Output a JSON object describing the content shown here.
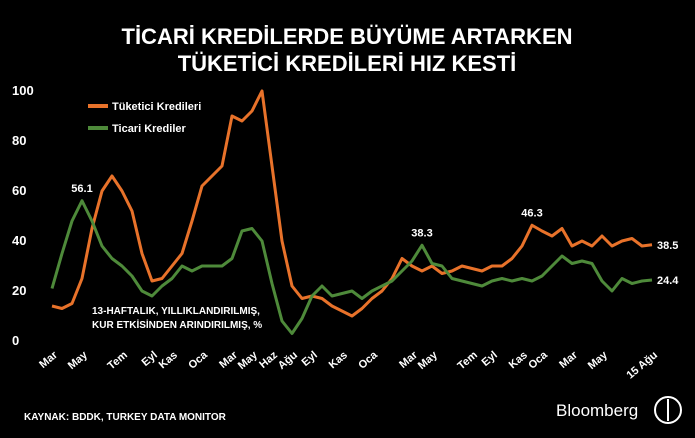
{
  "chart_data": {
    "type": "line",
    "title_lines": [
      "TİCARİ KREDİLERDE BÜYÜME ARTARKEN",
      "TÜKETİCİ KREDİLERİ HIZ KESTİ"
    ],
    "note_lines": [
      "13-HAFTALIK, YILLIKLANDIRILMIŞ,",
      "KUR ETKİSİNDEN ARINDIRILMIŞ, %"
    ],
    "source": "KAYNAK: BDDK, TURKEY DATA MONITOR",
    "brand": "Bloomberg",
    "categories": [
      "Mar",
      null,
      null,
      "May",
      null,
      null,
      null,
      "Tem",
      null,
      null,
      "Eyl",
      null,
      "Kas",
      null,
      null,
      "Oca",
      null,
      null,
      "Mar",
      null,
      "May",
      null,
      "Haz",
      null,
      "Ağu",
      null,
      "Eyl",
      null,
      null,
      "Kas",
      null,
      null,
      "Oca",
      null,
      null,
      null,
      "Mar",
      null,
      "May",
      null,
      null,
      null,
      "Tem",
      null,
      "Eyl",
      null,
      null,
      "Kas",
      null,
      "Oca",
      null,
      null,
      "Mar",
      null,
      null,
      "May",
      null,
      null,
      null,
      null,
      "15 Ağu"
    ],
    "series": [
      {
        "name": "Tüketici Kredileri",
        "color": "#e8722a",
        "values": [
          14,
          13,
          15,
          25,
          45,
          60,
          66,
          60,
          52,
          35,
          24,
          25,
          30,
          35,
          48,
          62,
          66,
          70,
          90,
          88,
          92,
          100,
          70,
          40,
          22,
          17,
          18,
          17,
          14,
          12,
          10,
          13,
          17,
          20,
          25,
          33,
          30,
          28,
          30,
          27,
          28,
          30,
          29,
          28,
          30,
          30,
          33,
          38,
          46.3,
          44,
          42,
          45,
          38,
          40,
          38,
          42,
          38,
          40,
          41,
          38,
          38.5
        ],
        "value_labels": [
          null,
          null,
          null,
          null,
          null,
          null,
          null,
          null,
          null,
          null,
          null,
          null,
          null,
          null,
          null,
          null,
          null,
          null,
          null,
          null,
          null,
          null,
          null,
          null,
          null,
          null,
          null,
          null,
          null,
          null,
          null,
          null,
          null,
          null,
          null,
          null,
          null,
          null,
          null,
          null,
          null,
          null,
          null,
          null,
          null,
          null,
          null,
          null,
          "46.3",
          null,
          null,
          null,
          null,
          null,
          null,
          null,
          null,
          null,
          null,
          null,
          "38.5"
        ]
      },
      {
        "name": "Ticari Krediler",
        "color": "#4e8a3a",
        "values": [
          21,
          35,
          48,
          56.1,
          48,
          38,
          33,
          30,
          26,
          20,
          18,
          22,
          25,
          30,
          28,
          30,
          30,
          30,
          33,
          44,
          45,
          40,
          23,
          8,
          3,
          9,
          18,
          22,
          18,
          19,
          20,
          17,
          20,
          22,
          24,
          28,
          32,
          38.3,
          31,
          30,
          25,
          24,
          23,
          22,
          24,
          25,
          24,
          25,
          24,
          26,
          30,
          34,
          31,
          32,
          31,
          24,
          20,
          25,
          23,
          24,
          24.4
        ],
        "value_labels": [
          null,
          null,
          null,
          "56.1",
          null,
          null,
          null,
          null,
          null,
          null,
          null,
          null,
          null,
          null,
          null,
          null,
          null,
          null,
          null,
          null,
          null,
          null,
          null,
          null,
          null,
          null,
          null,
          null,
          null,
          null,
          null,
          null,
          null,
          null,
          null,
          null,
          null,
          "38.3",
          null,
          null,
          null,
          null,
          null,
          null,
          null,
          null,
          null,
          null,
          null,
          null,
          null,
          null,
          null,
          null,
          null,
          null,
          null,
          null,
          null,
          null,
          "24.4"
        ]
      }
    ],
    "ylim": [
      0,
      100
    ],
    "yticks": [
      0,
      20,
      40,
      60,
      80,
      100
    ],
    "grid": false,
    "legend": "top-left"
  }
}
